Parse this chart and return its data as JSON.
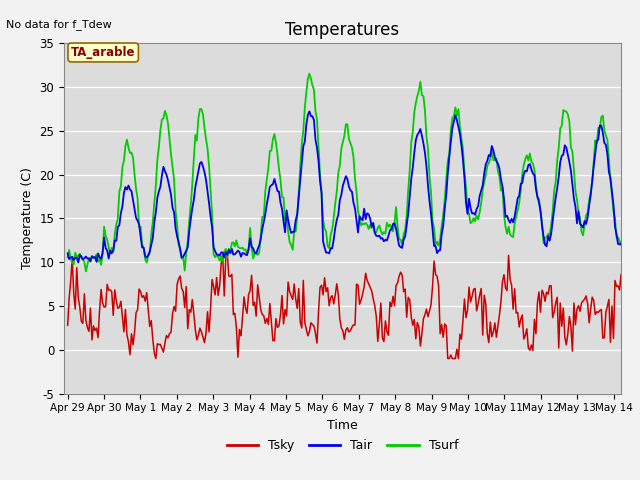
{
  "title": "Temperatures",
  "xlabel": "Time",
  "ylabel": "Temperature (C)",
  "note": "No data for f_Tdew",
  "label_box": "TA_arable",
  "ylim": [
    -5,
    35
  ],
  "yticks": [
    -5,
    0,
    5,
    10,
    15,
    20,
    25,
    30,
    35
  ],
  "xtick_labels": [
    "Apr 29",
    "Apr 30",
    "May 1",
    "May 2",
    "May 3",
    "May 4",
    "May 5",
    "May 6",
    "May 7",
    "May 8",
    "May 9",
    "May 10",
    "May 11",
    "May 12",
    "May 13",
    "May 14"
  ],
  "xtick_positions": [
    0,
    1,
    2,
    3,
    4,
    5,
    6,
    7,
    8,
    9,
    10,
    11,
    12,
    13,
    14,
    15
  ],
  "tsky_color": "#cc0000",
  "tair_color": "#0000ee",
  "tsurf_color": "#00cc00",
  "bg_color": "#dcdcdc",
  "grid_color": "#ffffff",
  "fig_bg": "#f2f2f2",
  "legend_items": [
    "Tsky",
    "Tair",
    "Tsurf"
  ]
}
